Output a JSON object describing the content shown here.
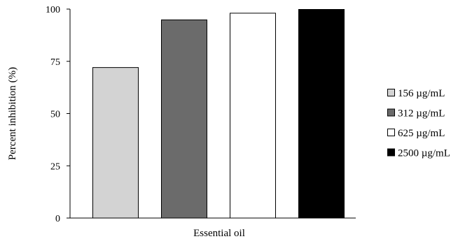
{
  "chart_data": {
    "type": "bar",
    "title": "",
    "xlabel": "Essential oil",
    "ylabel": "Percent inhibition (%)",
    "ylim": [
      0,
      100
    ],
    "yticks": [
      "0",
      "25",
      "50",
      "75",
      "100"
    ],
    "categories": [
      "Essential oil"
    ],
    "grid": false,
    "legend_position": "right",
    "series": [
      {
        "name": "156 µg/mL",
        "values": [
          72.2
        ],
        "color": "#d3d3d3"
      },
      {
        "name": "312 µg/mL",
        "values": [
          95
        ],
        "color": "#6b6b6b"
      },
      {
        "name": "625 µg/mL",
        "values": [
          98.2
        ],
        "color": "#ffffff"
      },
      {
        "name": "2500 µg/mL",
        "values": [
          100
        ],
        "color": "#000000"
      }
    ]
  }
}
